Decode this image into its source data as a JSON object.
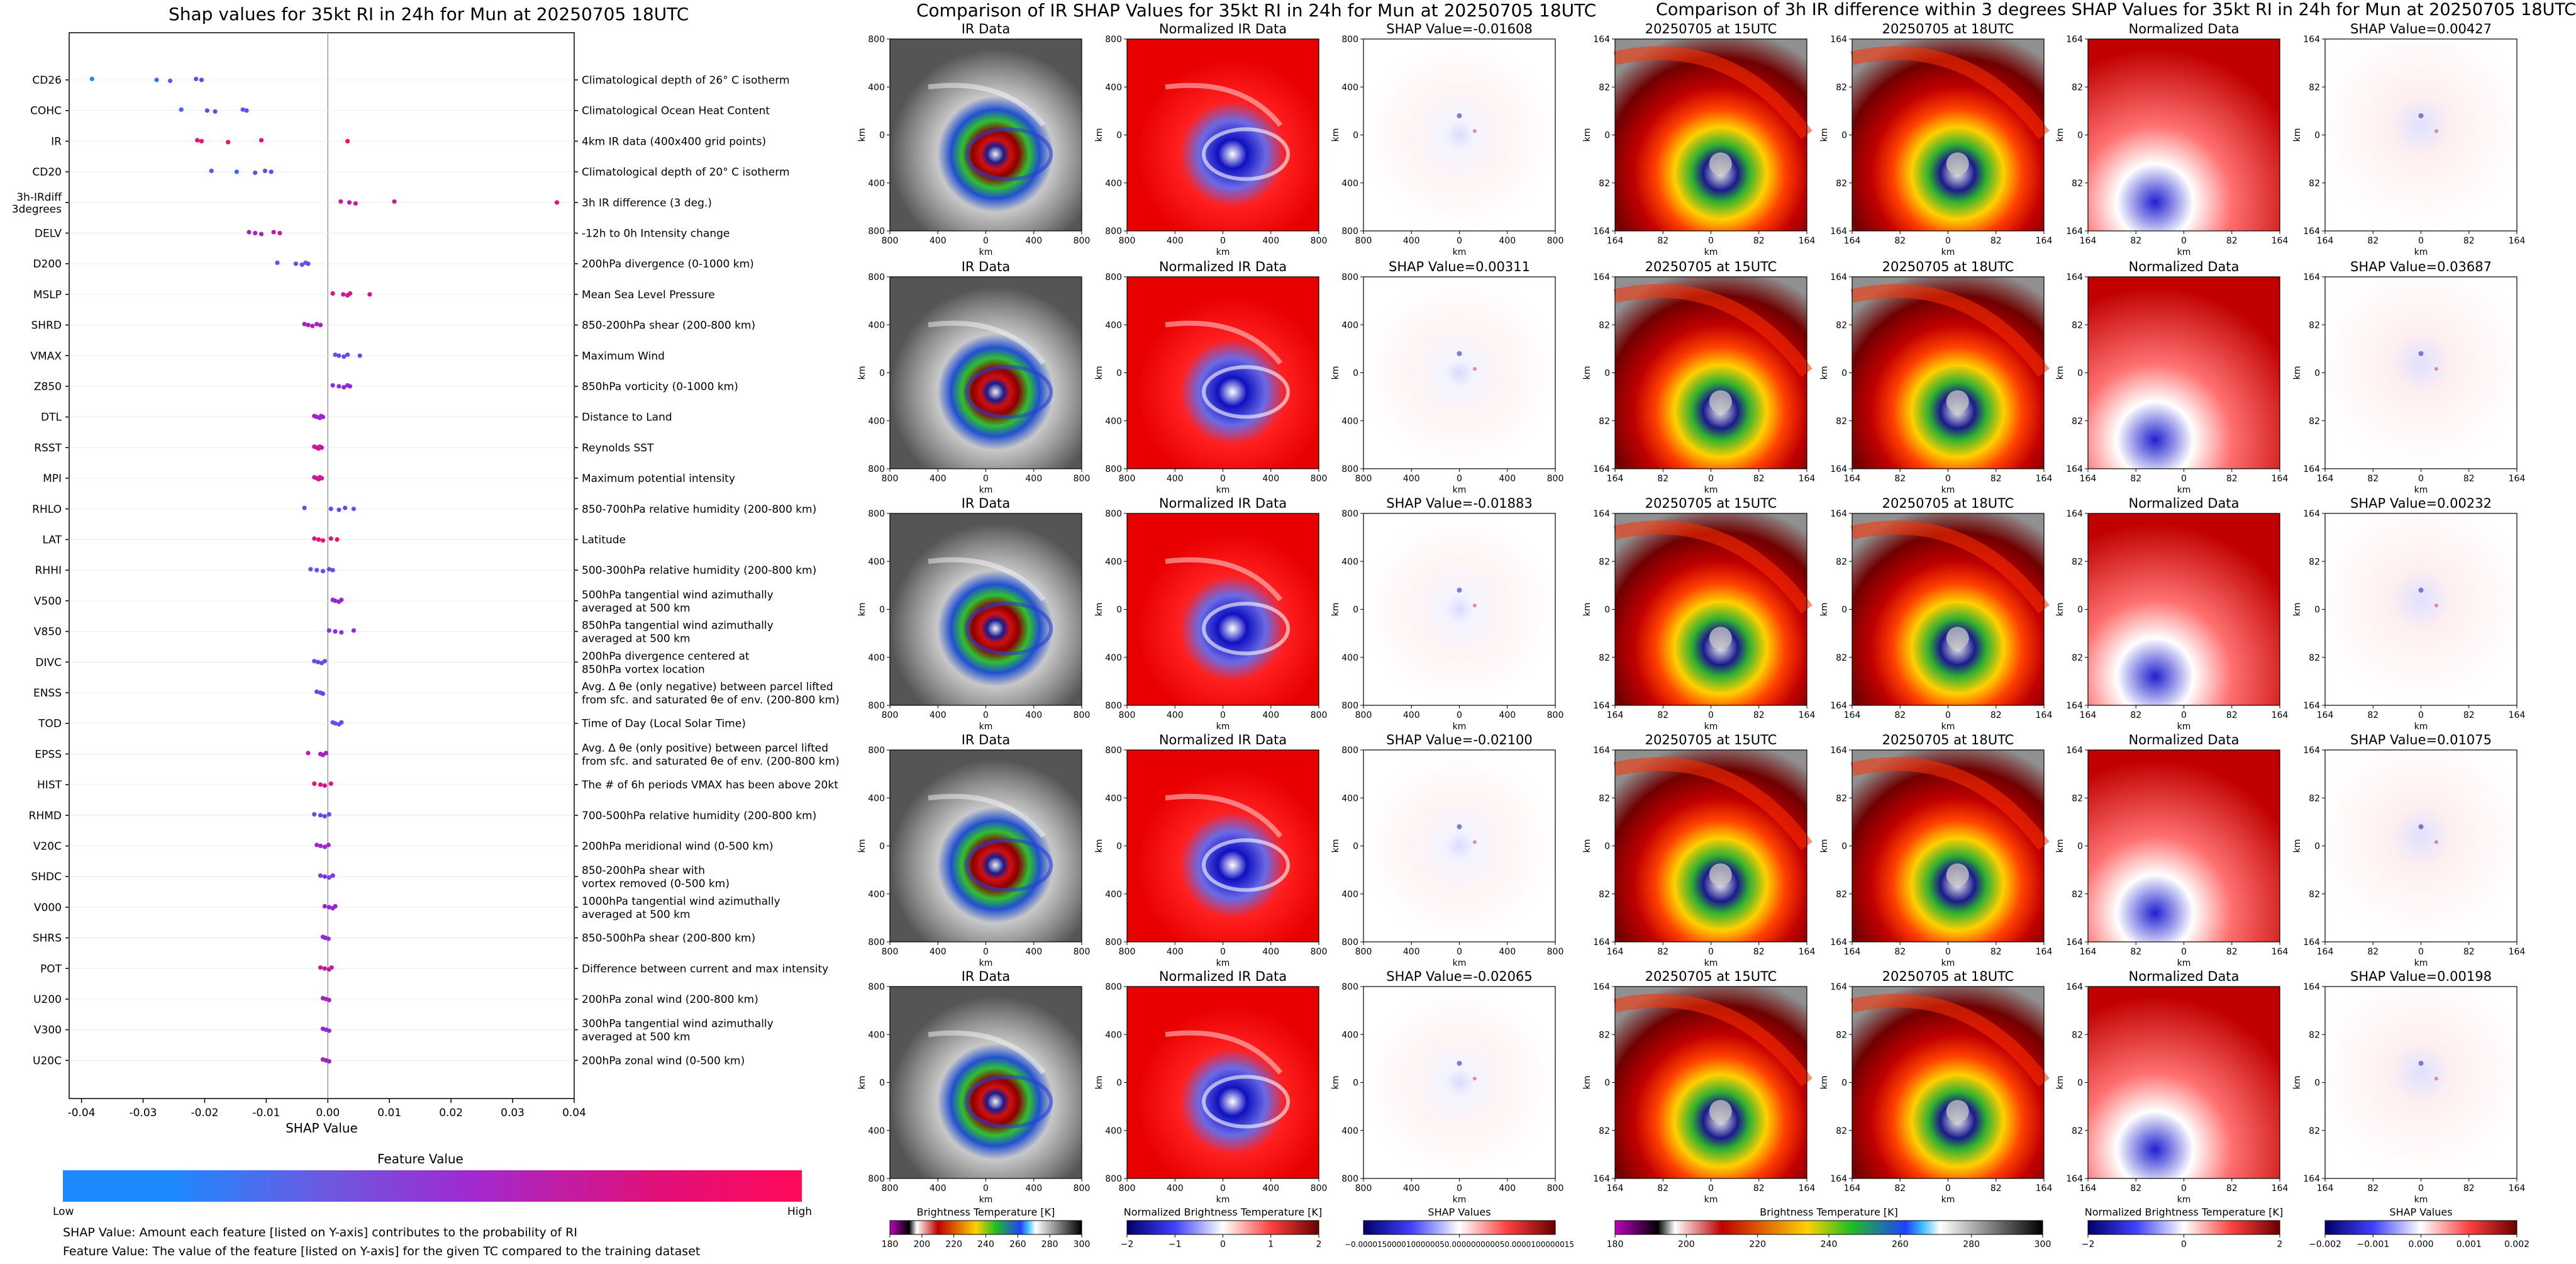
{
  "chart_data": [
    {
      "type": "scatter",
      "title": "Shap values for 35kt RI in 24h for Mun at 20250705 18UTC",
      "xlabel": "SHAP Value",
      "xlim": [
        -0.042,
        0.04
      ],
      "xticks": [
        "-0.04",
        "-0.03",
        "-0.02",
        "-0.01",
        "0.00",
        "0.01",
        "0.02",
        "0.03",
        "0.04"
      ],
      "colorbar": {
        "title": "Feature Value",
        "low": "Low",
        "high": "High"
      },
      "features": [
        {
          "code": "CD26",
          "desc": "Climatological depth of 26° C isotherm",
          "points": [
            [
              -0.0383,
              0.0
            ],
            [
              -0.0278,
              0.15
            ],
            [
              -0.0256,
              0.25
            ],
            [
              -0.0214,
              0.3
            ],
            [
              -0.0205,
              0.35
            ]
          ]
        },
        {
          "code": "COHC",
          "desc": "Climatological Ocean Heat Content",
          "points": [
            [
              -0.0238,
              0.2
            ],
            [
              -0.0196,
              0.35
            ],
            [
              -0.0183,
              0.3
            ],
            [
              -0.0138,
              0.25
            ],
            [
              -0.0132,
              0.3
            ]
          ]
        },
        {
          "code": "IR",
          "desc": "4km IR data (400x400 grid points)",
          "points": [
            [
              -0.0212,
              0.95
            ],
            [
              -0.0205,
              0.9
            ],
            [
              -0.0162,
              0.95
            ],
            [
              -0.0108,
              0.9
            ],
            [
              0.0032,
              0.95
            ]
          ]
        },
        {
          "code": "CD20",
          "desc": "Climatological depth of 20° C isotherm",
          "points": [
            [
              -0.0189,
              0.25
            ],
            [
              -0.0148,
              0.2
            ],
            [
              -0.0118,
              0.25
            ],
            [
              -0.0102,
              0.3
            ],
            [
              -0.0092,
              0.3
            ]
          ]
        },
        {
          "code": "3h-IRdiff\n3degrees",
          "desc": "3h IR difference (3 deg.)",
          "points": [
            [
              0.0021,
              0.75
            ],
            [
              0.0035,
              0.7
            ],
            [
              0.0045,
              0.8
            ],
            [
              0.0108,
              0.8
            ],
            [
              0.0372,
              0.85
            ]
          ]
        },
        {
          "code": "DELV",
          "desc": "-12h to 0h Intensity change",
          "points": [
            [
              -0.0128,
              0.6
            ],
            [
              -0.0118,
              0.62
            ],
            [
              -0.0108,
              0.65
            ],
            [
              -0.0088,
              0.7
            ],
            [
              -0.0078,
              0.72
            ]
          ]
        },
        {
          "code": "D200",
          "desc": "200hPa divergence (0-1000 km)",
          "points": [
            [
              -0.0082,
              0.25
            ],
            [
              -0.0052,
              0.3
            ],
            [
              -0.0042,
              0.3
            ],
            [
              -0.0036,
              0.25
            ],
            [
              -0.0032,
              0.3
            ]
          ]
        },
        {
          "code": "MSLP",
          "desc": "Mean Sea Level Pressure",
          "points": [
            [
              0.0008,
              0.85
            ],
            [
              0.0025,
              0.75
            ],
            [
              0.0032,
              0.9
            ],
            [
              0.0036,
              0.85
            ],
            [
              0.0068,
              0.8
            ]
          ]
        },
        {
          "code": "SHRD",
          "desc": "850-200hPa shear (200-800 km)",
          "points": [
            [
              -0.0038,
              0.65
            ],
            [
              -0.0032,
              0.6
            ],
            [
              -0.0025,
              0.7
            ],
            [
              -0.0018,
              0.65
            ],
            [
              -0.0012,
              0.6
            ]
          ]
        },
        {
          "code": "VMAX",
          "desc": "Maximum Wind",
          "points": [
            [
              0.0012,
              0.25
            ],
            [
              0.0018,
              0.3
            ],
            [
              0.0026,
              0.35
            ],
            [
              0.0032,
              0.3
            ],
            [
              0.0052,
              0.3
            ]
          ]
        },
        {
          "code": "Z850",
          "desc": "850hPa vorticity (0-1000 km)",
          "points": [
            [
              0.0008,
              0.45
            ],
            [
              0.0018,
              0.5
            ],
            [
              0.0026,
              0.55
            ],
            [
              0.0032,
              0.5
            ],
            [
              0.0036,
              0.55
            ]
          ]
        },
        {
          "code": "DTL",
          "desc": "Distance to Land",
          "points": [
            [
              -0.0022,
              0.65
            ],
            [
              -0.0018,
              0.6
            ],
            [
              -0.0013,
              0.55
            ],
            [
              -0.0011,
              0.6
            ],
            [
              -0.0008,
              0.55
            ]
          ]
        },
        {
          "code": "RSST",
          "desc": "Reynolds SST",
          "points": [
            [
              -0.0022,
              0.75
            ],
            [
              -0.0018,
              0.8
            ],
            [
              -0.0015,
              0.75
            ],
            [
              -0.0013,
              0.8
            ],
            [
              -0.001,
              0.75
            ]
          ]
        },
        {
          "code": "MPI",
          "desc": "Maximum potential intensity",
          "points": [
            [
              -0.0022,
              0.75
            ],
            [
              -0.0018,
              0.8
            ],
            [
              -0.0015,
              0.75
            ],
            [
              -0.0013,
              0.8
            ],
            [
              -0.001,
              0.75
            ]
          ]
        },
        {
          "code": "RHLO",
          "desc": "850-700hPa relative humidity (200-800 km)",
          "points": [
            [
              -0.0038,
              0.3
            ],
            [
              0.0005,
              0.35
            ],
            [
              0.0018,
              0.4
            ],
            [
              0.0028,
              0.3
            ],
            [
              0.0042,
              0.25
            ]
          ]
        },
        {
          "code": "LAT",
          "desc": "Latitude",
          "points": [
            [
              -0.0022,
              0.85
            ],
            [
              -0.0015,
              0.9
            ],
            [
              -0.0008,
              0.95
            ],
            [
              0.0005,
              0.85
            ],
            [
              0.0015,
              0.9
            ]
          ]
        },
        {
          "code": "RHHI",
          "desc": "500-300hPa relative humidity (200-800 km)",
          "points": [
            [
              -0.0028,
              0.25
            ],
            [
              -0.0018,
              0.3
            ],
            [
              -0.0008,
              0.3
            ],
            [
              0.0002,
              0.35
            ],
            [
              0.0008,
              0.3
            ]
          ]
        },
        {
          "code": "V500",
          "desc": "500hPa tangential wind azimuthally\naveraged at 500 km",
          "points": [
            [
              0.0008,
              0.55
            ],
            [
              0.0012,
              0.5
            ],
            [
              0.0018,
              0.55
            ],
            [
              0.0022,
              0.6
            ]
          ]
        },
        {
          "code": "V850",
          "desc": "850hPa tangential wind azimuthally\naveraged at 500 km",
          "points": [
            [
              0.0002,
              0.45
            ],
            [
              0.0012,
              0.5
            ],
            [
              0.0022,
              0.45
            ],
            [
              0.0042,
              0.5
            ]
          ]
        },
        {
          "code": "DIVC",
          "desc": "200hPa divergence centered at\n850hPa vortex location",
          "points": [
            [
              -0.0022,
              0.3
            ],
            [
              -0.0016,
              0.35
            ],
            [
              -0.001,
              0.3
            ],
            [
              -0.0005,
              0.35
            ]
          ]
        },
        {
          "code": "ENSS",
          "desc": "Avg. Δ θe (only negative) between parcel lifted\nfrom sfc. and saturated θe of env. (200-800 km)",
          "points": [
            [
              -0.0018,
              0.4
            ],
            [
              -0.0012,
              0.35
            ],
            [
              -0.0008,
              0.4
            ]
          ]
        },
        {
          "code": "TOD",
          "desc": "Time of Day (Local Solar Time)",
          "points": [
            [
              0.0008,
              0.3
            ],
            [
              0.0012,
              0.25
            ],
            [
              0.0018,
              0.3
            ],
            [
              0.0022,
              0.35
            ]
          ]
        },
        {
          "code": "EPSS",
          "desc": "Avg. Δ θe (only positive) between parcel lifted\nfrom sfc. and saturated θe of env. (200-800 km)",
          "points": [
            [
              -0.0032,
              0.7
            ],
            [
              -0.0012,
              0.6
            ],
            [
              -0.0008,
              0.65
            ],
            [
              -0.0003,
              0.6
            ]
          ]
        },
        {
          "code": "HIST",
          "desc": "The # of 6h periods VMAX has been above 20kt",
          "points": [
            [
              -0.0022,
              0.9
            ],
            [
              -0.0012,
              0.85
            ],
            [
              -0.0005,
              0.8
            ],
            [
              0.0005,
              0.85
            ]
          ]
        },
        {
          "code": "RHMD",
          "desc": "700-500hPa relative humidity (200-800 km)",
          "points": [
            [
              -0.0022,
              0.3
            ],
            [
              -0.0012,
              0.35
            ],
            [
              -0.0005,
              0.4
            ],
            [
              0.0002,
              0.35
            ]
          ]
        },
        {
          "code": "V20C",
          "desc": "200hPa meridional wind (0-500 km)",
          "points": [
            [
              -0.0018,
              0.55
            ],
            [
              -0.0012,
              0.6
            ],
            [
              -0.0005,
              0.55
            ],
            [
              0.0001,
              0.6
            ]
          ]
        },
        {
          "code": "SHDC",
          "desc": "850-200hPa shear with\nvortex removed (0-500 km)",
          "points": [
            [
              -0.0012,
              0.4
            ],
            [
              -0.0005,
              0.45
            ],
            [
              0.0002,
              0.4
            ],
            [
              0.0008,
              0.45
            ]
          ]
        },
        {
          "code": "V000",
          "desc": "1000hPa tangential wind azimuthally\naveraged at 500 km",
          "points": [
            [
              -0.0005,
              0.6
            ],
            [
              0.0002,
              0.55
            ],
            [
              0.0008,
              0.6
            ],
            [
              0.0012,
              0.55
            ]
          ]
        },
        {
          "code": "SHRS",
          "desc": "850-500hPa shear (200-800 km)",
          "points": [
            [
              -0.0008,
              0.5
            ],
            [
              -0.0004,
              0.55
            ],
            [
              0.0001,
              0.5
            ]
          ]
        },
        {
          "code": "POT",
          "desc": "Difference between current and max intensity",
          "points": [
            [
              -0.0012,
              0.75
            ],
            [
              -0.0005,
              0.8
            ],
            [
              0.0002,
              0.75
            ],
            [
              0.0006,
              0.7
            ]
          ]
        },
        {
          "code": "U200",
          "desc": "200hPa zonal wind (200-800 km)",
          "points": [
            [
              -0.0008,
              0.6
            ],
            [
              -0.0003,
              0.65
            ],
            [
              0.0002,
              0.6
            ]
          ]
        },
        {
          "code": "V300",
          "desc": "300hPa tangential wind azimuthally\naveraged at 500 km",
          "points": [
            [
              -0.0008,
              0.55
            ],
            [
              -0.0003,
              0.5
            ],
            [
              0.0002,
              0.55
            ]
          ]
        },
        {
          "code": "U20C",
          "desc": "200hPa zonal wind (0-500 km)",
          "points": [
            [
              -0.0008,
              0.6
            ],
            [
              -0.0003,
              0.65
            ],
            [
              0.0002,
              0.6
            ]
          ]
        }
      ]
    },
    {
      "type": "heatmap",
      "title": "Comparison of IR SHAP Values for 35kt RI in 24h for Mun at 20250705 18UTC",
      "columns": [
        {
          "title": "IR Data",
          "kind": "ir"
        },
        {
          "title": "Normalized IR Data",
          "kind": "nir"
        },
        {
          "title": "SHAP Value",
          "kind": "shap"
        }
      ],
      "shap_values": [
        "-0.01608",
        "0.00311",
        "-0.01883",
        "-0.02100",
        "-0.02065"
      ],
      "xticks": [
        "800",
        "400",
        "0",
        "400",
        "800"
      ],
      "yticks": [
        "800",
        "400",
        "0",
        "400",
        "800"
      ],
      "axis_unit": "km",
      "colorbars": [
        {
          "label": "Brightness Temperature [K]",
          "ticks": [
            "180",
            "200",
            "220",
            "240",
            "260",
            "280",
            "300"
          ]
        },
        {
          "label": "Normalized Brightness Temperature [K]",
          "ticks": [
            "−2",
            "−1",
            "0",
            "1",
            "2"
          ]
        },
        {
          "label": "SHAP Values",
          "ticks": [
            "−0.0000150000100000050.000000000050.0000100000015"
          ]
        }
      ]
    },
    {
      "type": "heatmap",
      "title": "Comparison of 3h IR difference within 3 degrees SHAP Values for 35kt RI in 24h for Mun at 20250705 18UTC",
      "columns": [
        {
          "title": "20250705 at 15UTC",
          "kind": "ir3"
        },
        {
          "title": "20250705 at 18UTC",
          "kind": "ir3"
        },
        {
          "title": "Normalized Data",
          "kind": "norm3"
        },
        {
          "title": "SHAP Value",
          "kind": "shap3"
        }
      ],
      "shap_values": [
        "0.00427",
        "0.03687",
        "0.00232",
        "0.01075",
        "0.00198"
      ],
      "xticks": [
        "164",
        "82",
        "0",
        "82",
        "164"
      ],
      "yticks": [
        "164",
        "82",
        "0",
        "82",
        "164"
      ],
      "axis_unit": "km",
      "colorbars": [
        {
          "label": "Brightness Temperature [K]",
          "ticks": [
            "180",
            "200",
            "220",
            "240",
            "260",
            "280",
            "300"
          ]
        },
        {
          "label": "Normalized Brightness Temperature [K]",
          "ticks": [
            "−2",
            "0",
            "2"
          ]
        },
        {
          "label": "SHAP Values",
          "ticks": [
            "−0.002",
            "−0.001",
            "0.000",
            "0.001",
            "0.002"
          ]
        }
      ]
    }
  ],
  "notes": {
    "shap_value": "SHAP Value: Amount each feature [listed on Y-axis] contributes to the probability of RI",
    "feature_value": "Feature Value: The value of the feature [listed on Y-axis] for the given TC compared to the training dataset"
  },
  "colors": {
    "low": "#1e88ff",
    "mid": "#8a2be2",
    "high": "#ff0a5a"
  }
}
